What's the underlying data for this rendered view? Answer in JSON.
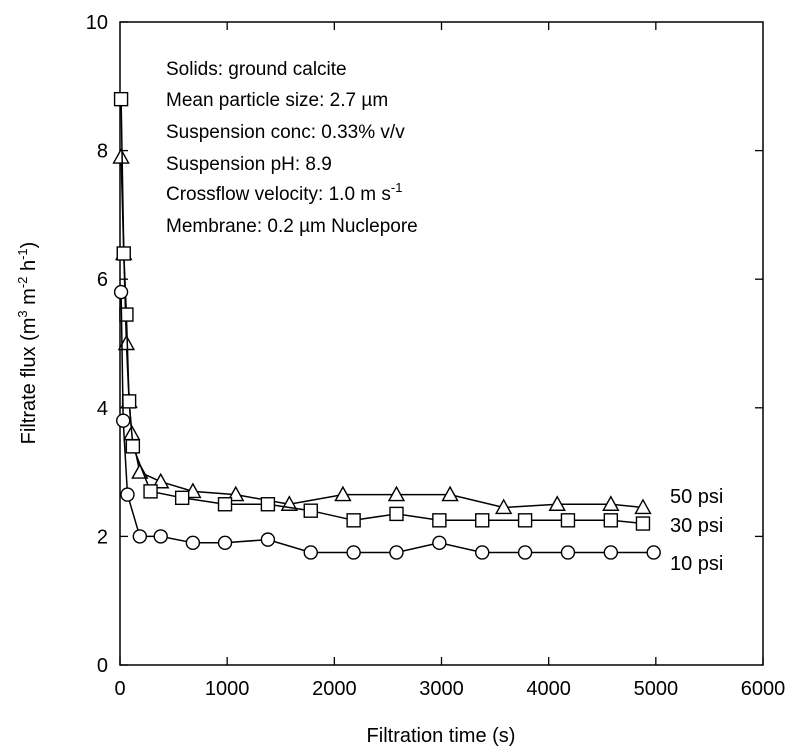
{
  "chart_data": {
    "type": "line",
    "title": "",
    "xlabel": "Filtration time (s)",
    "ylabel": {
      "base": "Filtrate flux (m",
      "sup1": "3",
      "mid1": " m",
      "sup2": "-2",
      "mid2": " h",
      "sup3": "-1",
      "end": ")"
    },
    "xlim": [
      0,
      6000
    ],
    "ylim": [
      0,
      10
    ],
    "xticks": [
      0,
      1000,
      2000,
      3000,
      4000,
      5000,
      6000
    ],
    "yticks": [
      0,
      2,
      4,
      6,
      8,
      10
    ],
    "xtick_labels": [
      "0",
      "1000",
      "2000",
      "3000",
      "4000",
      "5000",
      "6000"
    ],
    "ytick_labels": [
      "0",
      "2",
      "4",
      "6",
      "8",
      "10"
    ],
    "grid": false,
    "annotations": [
      {
        "text": "Solids: ground calcite"
      },
      {
        "text": "Mean particle size: 2.7 µm"
      },
      {
        "text": "Suspension conc: 0.33% v/v"
      },
      {
        "text": "Suspension pH: 8.9"
      },
      {
        "text": "Crossflow velocity: 1.0 m s",
        "sup": "-1"
      },
      {
        "text": "Membrane: 0.2 µm Nuclepore"
      }
    ],
    "series": [
      {
        "name": "50 psi",
        "marker": "triangle",
        "x": [
          10,
          35,
          60,
          85,
          110,
          185,
          380,
          680,
          1080,
          1580,
          2080,
          2580,
          3080,
          3580,
          4080,
          4580,
          4880
        ],
        "y": [
          7.9,
          6.4,
          5.0,
          4.1,
          3.6,
          3.0,
          2.85,
          2.7,
          2.65,
          2.5,
          2.65,
          2.65,
          2.65,
          2.45,
          2.5,
          2.5,
          2.45
        ]
      },
      {
        "name": "30 psi",
        "marker": "square",
        "x": [
          10,
          35,
          60,
          85,
          120,
          285,
          580,
          980,
          1380,
          1780,
          2180,
          2580,
          2980,
          3380,
          3780,
          4180,
          4580,
          4880
        ],
        "y": [
          8.8,
          6.4,
          5.45,
          4.1,
          3.4,
          2.7,
          2.6,
          2.5,
          2.5,
          2.4,
          2.25,
          2.35,
          2.25,
          2.25,
          2.25,
          2.25,
          2.25,
          2.2
        ]
      },
      {
        "name": "10 psi",
        "marker": "circle",
        "x": [
          10,
          30,
          70,
          185,
          380,
          680,
          980,
          1380,
          1780,
          2180,
          2580,
          2980,
          3380,
          3780,
          4180,
          4580,
          4980
        ],
        "y": [
          5.8,
          3.8,
          2.65,
          2.0,
          2.0,
          1.9,
          1.9,
          1.95,
          1.75,
          1.75,
          1.75,
          1.9,
          1.75,
          1.75,
          1.75,
          1.75,
          1.75
        ]
      }
    ]
  }
}
